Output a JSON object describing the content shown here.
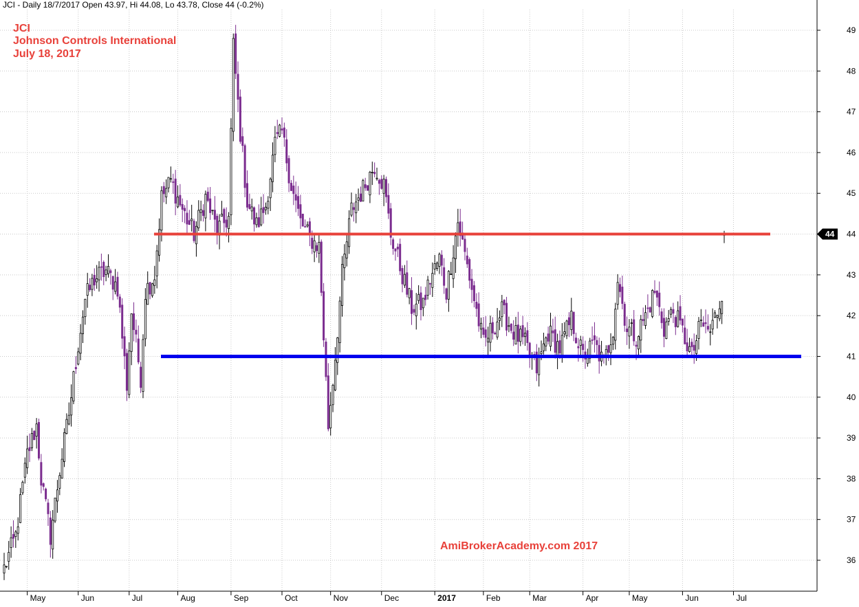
{
  "header": {
    "info": "JCI - Daily 18/7/2017 Open 43.97, Hi 44.08, Lo 43.78, Close 44 (-0.2%)"
  },
  "annotations": {
    "ticker": "JCI",
    "company": "Johnson Controls International",
    "date": "July 18, 2017",
    "watermark": "AmiBrokerAcademy.com 2017"
  },
  "colors": {
    "bull_candle": "#000000",
    "bear_candle": "#7b2c8f",
    "resistance": "#e8413a",
    "support": "#0000ee",
    "grid": "#c8c8c8",
    "price_badge": "#000000"
  },
  "chart_data": {
    "type": "candlestick",
    "title": "JCI",
    "ylim": [
      35.3,
      49.5
    ],
    "y_ticks": [
      36,
      37,
      38,
      39,
      40,
      41,
      42,
      43,
      44,
      45,
      46,
      47,
      48,
      49
    ],
    "x_tick_labels": [
      "May",
      "Jun",
      "Jul",
      "Aug",
      "Sep",
      "Oct",
      "Nov",
      "Dec",
      "2017",
      "Feb",
      "Mar",
      "Apr",
      "May",
      "Jun",
      "Jul"
    ],
    "last_price": "44",
    "horizontal_lines": [
      {
        "name": "resistance",
        "value": 44.0,
        "color": "#e8413a"
      },
      {
        "name": "support",
        "value": 41.0,
        "color": "#0000ee"
      }
    ],
    "candle_count": 312,
    "candles_note": "closing path anchors (date, close) used to generate the daily series",
    "anchors": [
      [
        "2016-04-18",
        35.8
      ],
      [
        "2016-04-25",
        36.6
      ],
      [
        "2016-05-02",
        38.6
      ],
      [
        "2016-05-06",
        39.3
      ],
      [
        "2016-05-10",
        38.0
      ],
      [
        "2016-05-16",
        36.6
      ],
      [
        "2016-05-20",
        38.2
      ],
      [
        "2016-05-26",
        39.6
      ],
      [
        "2016-06-01",
        41.3
      ],
      [
        "2016-06-06",
        42.4
      ],
      [
        "2016-06-10",
        42.9
      ],
      [
        "2016-06-17",
        43.1
      ],
      [
        "2016-06-24",
        42.7
      ],
      [
        "2016-06-30",
        40.3
      ],
      [
        "2016-07-04",
        42.1
      ],
      [
        "2016-07-08",
        40.5
      ],
      [
        "2016-07-12",
        42.6
      ],
      [
        "2016-07-18",
        43.0
      ],
      [
        "2016-07-21",
        44.9
      ],
      [
        "2016-07-27",
        45.3
      ],
      [
        "2016-08-03",
        44.6
      ],
      [
        "2016-08-10",
        44.0
      ],
      [
        "2016-08-17",
        44.9
      ],
      [
        "2016-08-24",
        44.1
      ],
      [
        "2016-08-31",
        44.4
      ],
      [
        "2016-09-02",
        48.6
      ],
      [
        "2016-09-07",
        46.5
      ],
      [
        "2016-09-12",
        44.8
      ],
      [
        "2016-09-16",
        44.2
      ],
      [
        "2016-09-22",
        44.7
      ],
      [
        "2016-09-28",
        46.2
      ],
      [
        "2016-10-03",
        46.5
      ],
      [
        "2016-10-07",
        45.2
      ],
      [
        "2016-10-13",
        44.3
      ],
      [
        "2016-10-19",
        43.9
      ],
      [
        "2016-10-25",
        43.7
      ],
      [
        "2016-10-31",
        39.3
      ],
      [
        "2016-11-03",
        41.0
      ],
      [
        "2016-11-08",
        43.0
      ],
      [
        "2016-11-14",
        44.6
      ],
      [
        "2016-11-21",
        45.1
      ],
      [
        "2016-11-28",
        45.7
      ],
      [
        "2016-12-02",
        45.2
      ],
      [
        "2016-12-07",
        44.0
      ],
      [
        "2016-12-13",
        43.2
      ],
      [
        "2016-12-20",
        42.2
      ],
      [
        "2016-12-27",
        42.3
      ],
      [
        "2016-12-30",
        42.9
      ],
      [
        "2017-01-05",
        43.4
      ],
      [
        "2017-01-10",
        42.6
      ],
      [
        "2017-01-17",
        44.3
      ],
      [
        "2017-01-20",
        43.5
      ],
      [
        "2017-01-26",
        42.4
      ],
      [
        "2017-02-01",
        41.3
      ],
      [
        "2017-02-07",
        41.7
      ],
      [
        "2017-02-13",
        42.1
      ],
      [
        "2017-02-20",
        41.6
      ],
      [
        "2017-02-27",
        41.3
      ],
      [
        "2017-03-06",
        40.7
      ],
      [
        "2017-03-13",
        41.6
      ],
      [
        "2017-03-20",
        41.2
      ],
      [
        "2017-03-27",
        41.9
      ],
      [
        "2017-04-03",
        41.0
      ],
      [
        "2017-04-10",
        41.3
      ],
      [
        "2017-04-14",
        40.8
      ],
      [
        "2017-04-20",
        41.7
      ],
      [
        "2017-04-24",
        42.9
      ],
      [
        "2017-04-28",
        41.7
      ],
      [
        "2017-05-04",
        41.5
      ],
      [
        "2017-05-10",
        42.0
      ],
      [
        "2017-05-16",
        42.6
      ],
      [
        "2017-05-22",
        41.7
      ],
      [
        "2017-05-26",
        42.1
      ],
      [
        "2017-06-01",
        41.6
      ],
      [
        "2017-06-07",
        41.0
      ],
      [
        "2017-06-13",
        41.8
      ],
      [
        "2017-06-19",
        41.6
      ],
      [
        "2017-06-23",
        42.3
      ],
      [
        "2017-06-29",
        43.5
      ],
      [
        "2017-07-06",
        43.2
      ],
      [
        "2017-07-12",
        43.4
      ],
      [
        "2017-07-18",
        44.0
      ]
    ]
  }
}
